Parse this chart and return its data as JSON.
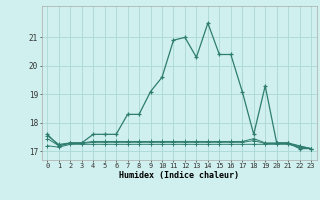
{
  "xlabel": "Humidex (Indice chaleur)",
  "background_color": "#cff0ee",
  "grid_color": "#aad8d4",
  "line_color": "#2e7d6e",
  "x_values": [
    0,
    1,
    2,
    3,
    4,
    5,
    6,
    7,
    8,
    9,
    10,
    11,
    12,
    13,
    14,
    15,
    16,
    17,
    18,
    19,
    20,
    21,
    22,
    23
  ],
  "y_main": [
    17.6,
    17.2,
    17.3,
    17.3,
    17.6,
    17.6,
    17.6,
    18.3,
    18.3,
    19.1,
    19.6,
    20.9,
    21.0,
    20.3,
    21.5,
    20.4,
    20.4,
    19.1,
    17.6,
    19.3,
    17.3,
    17.3,
    17.1,
    17.1
  ],
  "y_flat1": [
    17.2,
    17.15,
    17.25,
    17.25,
    17.25,
    17.25,
    17.25,
    17.25,
    17.25,
    17.25,
    17.25,
    17.25,
    17.25,
    17.25,
    17.25,
    17.25,
    17.25,
    17.25,
    17.25,
    17.25,
    17.25,
    17.25,
    17.15,
    17.1
  ],
  "y_flat2": [
    17.55,
    17.25,
    17.3,
    17.3,
    17.35,
    17.35,
    17.35,
    17.35,
    17.35,
    17.35,
    17.35,
    17.35,
    17.35,
    17.35,
    17.35,
    17.35,
    17.35,
    17.35,
    17.45,
    17.3,
    17.3,
    17.3,
    17.2,
    17.1
  ],
  "y_flat3": [
    17.45,
    17.2,
    17.28,
    17.28,
    17.32,
    17.32,
    17.32,
    17.32,
    17.32,
    17.32,
    17.32,
    17.32,
    17.32,
    17.32,
    17.32,
    17.32,
    17.32,
    17.32,
    17.38,
    17.28,
    17.28,
    17.28,
    17.18,
    17.1
  ],
  "ylim": [
    16.7,
    22.1
  ],
  "yticks": [
    17,
    18,
    19,
    20,
    21
  ],
  "xticks": [
    0,
    1,
    2,
    3,
    4,
    5,
    6,
    7,
    8,
    9,
    10,
    11,
    12,
    13,
    14,
    15,
    16,
    17,
    18,
    19,
    20,
    21,
    22,
    23
  ]
}
